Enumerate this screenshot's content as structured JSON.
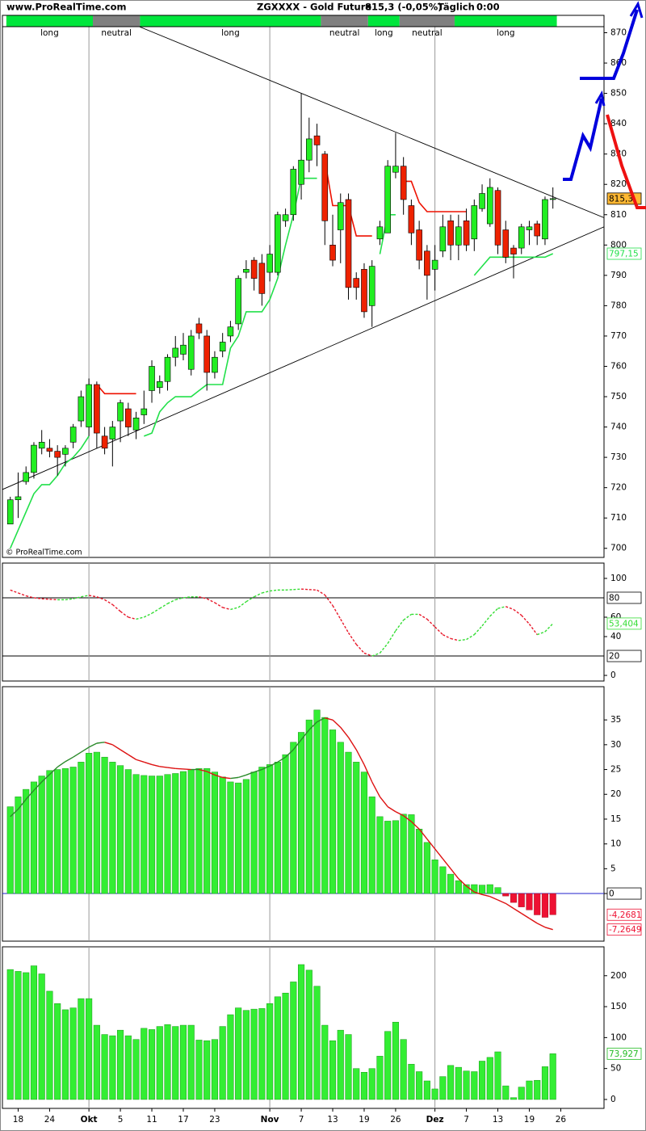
{
  "header": {
    "site": "www.ProRealTime.com",
    "symbol": "ZGXXXX - Gold Future",
    "quote": "815,3 (-0,05%)",
    "period": "Täglich",
    "time": "0:00"
  },
  "chart_data": [
    {
      "type": "candlestick",
      "open": [
        708,
        716,
        722,
        725,
        733,
        733,
        732,
        731,
        735,
        742,
        740,
        754,
        737,
        736,
        742,
        746,
        739,
        744,
        752,
        753,
        755,
        763,
        764,
        759,
        774,
        770,
        758,
        765,
        770,
        774,
        791,
        795,
        794,
        791,
        791,
        808,
        810,
        820,
        828,
        836,
        830,
        800,
        805,
        815,
        789,
        792,
        780,
        802,
        804,
        824,
        826,
        813,
        805,
        798,
        792,
        798,
        808,
        800,
        808,
        802,
        812,
        807,
        818,
        805,
        799,
        799,
        805,
        807,
        802,
        815
      ],
      "high": [
        717,
        725,
        727,
        735,
        739,
        736,
        734,
        734,
        741,
        752,
        756,
        755,
        740,
        742,
        749,
        748,
        745,
        752,
        762,
        757,
        764,
        770,
        771,
        772,
        776,
        772,
        765,
        771,
        775,
        790,
        795,
        796,
        797,
        800,
        811,
        812,
        826,
        850,
        842,
        840,
        831,
        810,
        817,
        817,
        791,
        794,
        795,
        808,
        828,
        837,
        829,
        815,
        808,
        800,
        800,
        810,
        810,
        810,
        812,
        815,
        820,
        822,
        819,
        808,
        800,
        807,
        808,
        808,
        816,
        819
      ],
      "low": [
        708,
        710,
        721,
        723,
        731,
        730,
        724,
        727,
        733,
        740,
        737,
        733,
        731,
        727,
        735,
        737,
        736,
        741,
        748,
        751,
        752,
        760,
        762,
        757,
        769,
        752,
        756,
        763,
        768,
        772,
        789,
        785,
        780,
        788,
        790,
        806,
        808,
        815,
        824,
        826,
        800,
        793,
        794,
        782,
        782,
        776,
        773,
        800,
        804,
        822,
        810,
        800,
        792,
        782,
        785,
        796,
        795,
        795,
        798,
        798,
        811,
        806,
        797,
        794,
        789,
        797,
        800,
        800,
        800,
        812
      ],
      "close": [
        716,
        717,
        725,
        734,
        735,
        732,
        730,
        733,
        740,
        750,
        754,
        738,
        733,
        740,
        748,
        740,
        743,
        746,
        760,
        755,
        763,
        766,
        767,
        770,
        771,
        758,
        763,
        768,
        773,
        789,
        792,
        789,
        784,
        797,
        810,
        810,
        825,
        828,
        835,
        833,
        808,
        795,
        814,
        786,
        786,
        778,
        793,
        806,
        826,
        826,
        815,
        804,
        795,
        790,
        795,
        806,
        800,
        806,
        800,
        813,
        817,
        819,
        800,
        796,
        797,
        806,
        806,
        803,
        815,
        815.3
      ],
      "close_label": "815,3",
      "close_label_fill": "#ffb833",
      "up_color": "#22ee22",
      "down_color": "#ee2200",
      "series": [
        {
          "color": "#22e04a",
          "last_label": "797,15",
          "values": [
            700,
            706,
            712,
            718,
            721,
            721,
            724,
            728,
            730,
            733,
            737,
            null,
            null,
            null,
            null,
            null,
            null,
            737,
            738,
            745,
            748,
            750,
            750,
            750,
            752,
            754,
            754,
            754,
            766,
            770,
            778,
            778,
            778,
            782,
            789,
            800,
            810,
            822,
            822,
            822,
            null,
            null,
            null,
            null,
            null,
            null,
            null,
            797,
            810,
            810,
            null,
            null,
            null,
            null,
            null,
            null,
            null,
            null,
            null,
            790,
            793,
            796,
            796,
            796,
            796,
            796,
            796,
            796,
            796,
            797.15
          ]
        },
        {
          "color": "#ee1100",
          "values": [
            null,
            null,
            null,
            null,
            null,
            null,
            null,
            null,
            null,
            null,
            null,
            754,
            751,
            751,
            751,
            751,
            751,
            null,
            null,
            null,
            null,
            null,
            null,
            null,
            null,
            null,
            null,
            null,
            null,
            null,
            null,
            null,
            null,
            null,
            null,
            null,
            null,
            null,
            null,
            null,
            828,
            813,
            813,
            813,
            803,
            803,
            803,
            null,
            null,
            null,
            821,
            821,
            814,
            811,
            811,
            811,
            811,
            811,
            811,
            null,
            null,
            null,
            null,
            null,
            null,
            null,
            null,
            null,
            null,
            null
          ]
        }
      ],
      "trendlines": [
        {
          "x": [
            16.4,
            75.5
          ],
          "y": [
            872,
            809
          ]
        },
        {
          "x": [
            -1,
            75.5
          ],
          "y": [
            719.4,
            806
          ]
        }
      ],
      "status_segments": [
        {
          "label": "long",
          "from": 0,
          "to": 10,
          "color": "#00e63c"
        },
        {
          "label": "neutral",
          "from": 11,
          "to": 16,
          "color": "#808080"
        },
        {
          "label": "long",
          "from": 17,
          "to": 39,
          "color": "#00e63c"
        },
        {
          "label": "neutral",
          "from": 40,
          "to": 45,
          "color": "#808080"
        },
        {
          "label": "long",
          "from": 46,
          "to": 49,
          "color": "#00e63c"
        },
        {
          "label": "neutral",
          "from": 50,
          "to": 56,
          "color": "#808080"
        },
        {
          "label": "long",
          "from": 57,
          "to": 69,
          "color": "#00e63c"
        }
      ],
      "watermark": "© ProRealTime.com",
      "ylim": [
        697,
        872
      ],
      "yticks": [
        700,
        710,
        720,
        730,
        740,
        750,
        760,
        770,
        780,
        790,
        800,
        810,
        820,
        830,
        840,
        850,
        860,
        870
      ]
    },
    {
      "type": "line",
      "values": [
        88,
        85,
        82,
        80,
        79,
        78.5,
        78,
        78,
        79,
        81,
        82.5,
        81,
        78,
        73,
        66,
        60,
        58,
        60,
        64,
        69,
        74,
        78,
        80,
        81,
        81,
        79,
        75,
        70,
        68,
        70,
        76,
        81,
        85,
        87,
        88,
        88,
        88.5,
        89,
        88.5,
        88,
        83,
        72,
        58,
        44,
        32,
        23,
        20,
        23,
        33,
        46,
        57,
        63,
        63,
        58,
        50,
        42,
        38,
        36,
        37,
        42,
        51,
        61,
        69,
        71,
        68,
        62,
        53,
        42,
        45,
        53.404
      ],
      "last_label": "53,404",
      "up_color": "#33dd33",
      "down_color": "#e8182a",
      "dashed": true,
      "levels": [
        80,
        20
      ],
      "ylim": [
        -5.8,
        115.8
      ],
      "yticks": [
        0,
        40,
        60,
        100
      ]
    },
    {
      "type": "macd",
      "values": [
        17.5,
        19.5,
        21,
        22.5,
        23.7,
        24.8,
        25,
        25.2,
        25.5,
        26.5,
        28.3,
        28.5,
        27.5,
        26.5,
        25.8,
        25,
        24,
        23.8,
        23.7,
        23.7,
        24,
        24.2,
        24.6,
        25,
        25.2,
        25.2,
        24.5,
        23.5,
        22.5,
        22.3,
        23,
        24.5,
        25.5,
        26,
        26.5,
        28,
        30.5,
        32.5,
        35,
        37,
        35.5,
        33,
        30.5,
        28.5,
        26.5,
        24.5,
        19.5,
        15.5,
        14.6,
        14.7,
        16,
        15.9,
        13,
        10.3,
        6.8,
        5.4,
        3.9,
        2.6,
        1.8,
        1.8,
        1.7,
        1.8,
        1.2,
        -0.5,
        -1.8,
        -2.7,
        -3.3,
        -4.3,
        -4.8,
        -4.2681
      ],
      "last_label": "-4,2681",
      "signal": [
        15.5,
        17,
        19,
        20.8,
        22.5,
        24,
        25.5,
        26.6,
        27.5,
        28.5,
        29.5,
        30.3,
        30.5,
        30,
        29,
        28,
        27,
        26.5,
        26,
        25.6,
        25.4,
        25.2,
        25.1,
        25,
        25,
        24.6,
        23.9,
        23.4,
        23.2,
        23.4,
        23.9,
        24.5,
        25,
        25.7,
        26.5,
        27.5,
        29,
        31,
        33,
        34.6,
        35.4,
        35,
        33.5,
        31.5,
        29,
        26,
        22.5,
        19.5,
        17.5,
        16.5,
        15.7,
        14.5,
        13,
        11,
        9,
        7,
        5,
        3,
        1.5,
        0.3,
        -0.2,
        -0.6,
        -1.3,
        -2,
        -3,
        -4,
        -5,
        -6,
        -6.8,
        -7.2649
      ],
      "signal_last_label": "-7,2649",
      "positive_color": "#33ee33",
      "negative_color": "#ee1133",
      "signal_up_color": "#2a8a2a",
      "signal_down_color": "#dd1111",
      "zero_line_color": "#2222cc",
      "ylim": [
        -9.6,
        41.7
      ],
      "yticks": [
        0,
        5,
        10,
        15,
        20,
        25,
        30,
        35
      ]
    },
    {
      "type": "bar",
      "values": [
        210,
        207,
        205,
        216,
        203,
        175,
        155,
        145,
        148,
        163,
        163,
        120,
        105,
        103,
        112,
        103,
        97,
        115,
        113,
        118,
        121,
        118,
        120,
        120,
        96,
        95,
        97,
        118,
        137,
        148,
        144,
        146,
        147,
        155,
        166,
        172,
        190,
        218,
        209,
        183,
        120,
        95,
        112,
        105,
        50,
        44,
        50,
        70,
        110,
        125,
        97,
        57,
        45,
        30,
        17,
        37,
        55,
        52,
        46,
        45,
        62,
        68,
        77,
        22,
        3,
        20,
        30,
        31,
        53,
        73.927
      ],
      "last_label": "73,927",
      "color": "#33ee33",
      "xlim": [
        -1,
        75.5
      ],
      "xticks": [
        {
          "value": 1,
          "label": "18"
        },
        {
          "value": 5,
          "label": "24"
        },
        {
          "value": 10,
          "label": "Okt"
        },
        {
          "value": 14,
          "label": "5"
        },
        {
          "value": 18,
          "label": "11"
        },
        {
          "value": 22,
          "label": "17"
        },
        {
          "value": 26,
          "label": "23"
        },
        {
          "value": 33,
          "label": "Nov"
        },
        {
          "value": 37,
          "label": "7"
        },
        {
          "value": 41,
          "label": "13"
        },
        {
          "value": 45,
          "label": "19"
        },
        {
          "value": 49,
          "label": "26"
        },
        {
          "value": 54,
          "label": "Dez"
        },
        {
          "value": 58,
          "label": "7"
        },
        {
          "value": 62,
          "label": "13"
        },
        {
          "value": 66,
          "label": "19"
        },
        {
          "value": 70,
          "label": "26"
        }
      ],
      "ylim": [
        -14.4,
        246.7
      ],
      "yticks": [
        0,
        50,
        100,
        150,
        200
      ]
    }
  ]
}
